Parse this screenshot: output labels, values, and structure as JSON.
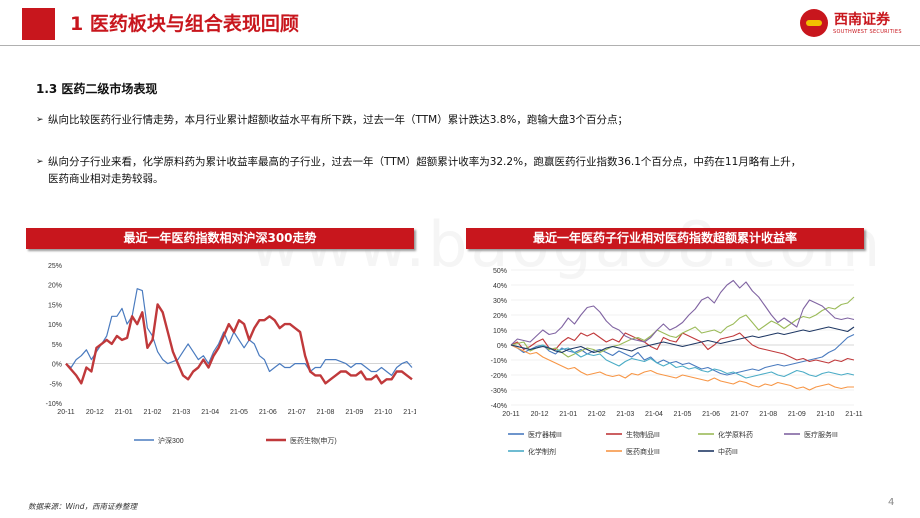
{
  "header": {
    "title": "1 医药板块与组合表现回顾"
  },
  "logo": {
    "name_cn": "西南证券",
    "name_en": "SOUTHWEST SECURITIES"
  },
  "section": {
    "title": "1.3 医药二级市场表现"
  },
  "bullets": [
    {
      "mark": "➢",
      "lines": [
        "纵向比较医药行业行情走势，本月行业累计超额收益水平有所下跌，过去一年（TTM）累计跌达3.8%，跑输大盘3个百分点；"
      ]
    },
    {
      "mark": "➢",
      "lines": [
        "纵向分子行业来看，化学原料药为累计收益率最高的子行业，过去一年（TTM）超额累计收率为32.2%，跑赢医药行业指数36.1个百分点，中药在11月略有上升，",
        "医药商业相对走势较弱。"
      ]
    }
  ],
  "watermark": "www.baogao8.com",
  "source": "数据来源：Wind，西南证券整理",
  "page_number": "4",
  "chart_data": [
    {
      "type": "line",
      "header": "最近一年医药指数相对沪深300走势",
      "title": "",
      "ylim": [
        -10,
        25
      ],
      "yticks": [
        "25%",
        "20%",
        "15%",
        "10%",
        "5%",
        "0%",
        "-5%",
        "-10%"
      ],
      "xticks": [
        "20-11",
        "20-12",
        "21-01",
        "21-02",
        "21-03",
        "21-04",
        "21-05",
        "21-06",
        "21-07",
        "21-08",
        "21-09",
        "21-10",
        "21-11"
      ],
      "legend_position": "bottom",
      "series": [
        {
          "name": "沪深300",
          "color": "#4a7bbf",
          "width": 1.2,
          "values": [
            0,
            -1,
            1,
            2,
            3.5,
            1,
            3,
            5,
            7,
            12,
            12,
            14,
            10,
            12,
            19,
            18.5,
            9,
            7,
            3,
            1,
            0,
            0.5,
            1,
            3,
            5,
            3,
            1,
            2,
            0,
            3,
            5,
            8,
            5,
            8,
            6,
            4,
            6,
            5,
            2,
            1,
            -2,
            -1,
            0,
            -1,
            -1,
            0,
            0,
            0,
            -2,
            -1,
            -1,
            1,
            1,
            1,
            0.5,
            0,
            -1,
            0,
            0,
            -1,
            -2,
            -2,
            -1,
            -2,
            -3,
            -1,
            0,
            0.5,
            -1
          ]
        },
        {
          "name": "医药生物(申万)",
          "color": "#c0393b",
          "width": 2.4,
          "values": [
            0,
            -1.5,
            -3,
            -5,
            -1,
            -2,
            4,
            5,
            6,
            5,
            7,
            6,
            6.5,
            12,
            10,
            13,
            4,
            6,
            15,
            13,
            8,
            3,
            0,
            -3,
            -4,
            -2,
            -1,
            1,
            -1,
            2,
            4,
            7,
            10,
            8,
            11,
            10,
            6,
            9,
            11,
            11,
            12,
            11,
            9,
            10,
            10,
            9,
            8,
            2,
            -2,
            -3,
            -3,
            -5,
            -4,
            -3,
            -2,
            -2,
            -3,
            -3,
            -2,
            -4,
            -4,
            -3,
            -5,
            -4,
            -4,
            -2,
            -2,
            -3,
            -4
          ]
        }
      ]
    },
    {
      "type": "line",
      "header": "最近一年医药子行业相对医药指数超额累计收益率",
      "title": "",
      "ylim": [
        -40,
        50
      ],
      "yticks": [
        "50%",
        "40%",
        "30%",
        "20%",
        "10%",
        "0%",
        "-10%",
        "-20%",
        "-30%",
        "-40%"
      ],
      "xticks": [
        "20-11",
        "20-12",
        "21-01",
        "21-02",
        "21-03",
        "21-04",
        "21-05",
        "21-06",
        "21-07",
        "21-08",
        "21-09",
        "21-10",
        "21-11"
      ],
      "legend_position": "bottom",
      "series": [
        {
          "name": "医疗器械III",
          "color": "#4a7bbf",
          "values": [
            0,
            -2,
            -5,
            -3,
            -1,
            0,
            -4,
            -6,
            -2,
            -4,
            -5,
            -3,
            -6,
            -4,
            -3,
            -5,
            -7,
            -4,
            -6,
            -8,
            -5,
            -10,
            -8,
            -12,
            -10,
            -12,
            -11,
            -13,
            -12,
            -14,
            -16,
            -15,
            -17,
            -19,
            -20,
            -19,
            -18,
            -17,
            -16,
            -17,
            -15,
            -14,
            -13,
            -14,
            -13,
            -12,
            -11,
            -10,
            -9,
            -8,
            -5,
            -3,
            1,
            5,
            7
          ]
        },
        {
          "name": "生物制品III",
          "color": "#c0393b",
          "values": [
            0,
            2,
            -3,
            -1,
            2,
            4,
            -2,
            -3,
            2,
            5,
            3,
            8,
            6,
            8,
            5,
            2,
            4,
            2,
            8,
            6,
            4,
            2,
            -1,
            -3,
            5,
            3,
            2,
            8,
            6,
            4,
            2,
            -3,
            0,
            4,
            5,
            6,
            8,
            4,
            0,
            -2,
            -3,
            -4,
            -5,
            -6,
            -8,
            -10,
            -9,
            -11,
            -10,
            -11,
            -12,
            -10,
            -11,
            -9,
            -10
          ]
        },
        {
          "name": "化学原料药",
          "color": "#9bbb59",
          "values": [
            0,
            1,
            2,
            -4,
            -2,
            0,
            -3,
            -2,
            -5,
            -8,
            -6,
            -4,
            -2,
            -3,
            -5,
            -3,
            -1,
            0,
            2,
            4,
            5,
            3,
            6,
            10,
            8,
            6,
            5,
            8,
            10,
            12,
            8,
            9,
            10,
            8,
            12,
            14,
            18,
            20,
            15,
            10,
            13,
            16,
            14,
            11,
            14,
            17,
            19,
            18,
            20,
            23,
            25,
            24,
            27,
            28,
            32
          ]
        },
        {
          "name": "医疗服务III",
          "color": "#8064a2",
          "values": [
            0,
            4,
            3,
            2,
            6,
            10,
            7,
            8,
            12,
            18,
            14,
            20,
            25,
            26,
            22,
            16,
            12,
            10,
            6,
            4,
            3,
            2,
            5,
            10,
            14,
            10,
            12,
            15,
            20,
            24,
            30,
            32,
            28,
            35,
            40,
            43,
            38,
            42,
            36,
            32,
            26,
            20,
            15,
            18,
            15,
            12,
            24,
            30,
            28,
            26,
            22,
            18,
            17,
            18,
            17
          ]
        },
        {
          "name": "化学制剂",
          "color": "#4bacc6",
          "values": [
            0,
            -1,
            -2,
            -3,
            -2,
            0,
            -2,
            -4,
            -3,
            -2,
            -5,
            -8,
            -6,
            -7,
            -6,
            -10,
            -12,
            -14,
            -11,
            -9,
            -10,
            -11,
            -9,
            -12,
            -14,
            -12,
            -15,
            -14,
            -16,
            -15,
            -17,
            -18,
            -16,
            -17,
            -19,
            -18,
            -20,
            -22,
            -21,
            -20,
            -19,
            -18,
            -20,
            -21,
            -19,
            -17,
            -18,
            -20,
            -21,
            -19,
            -18,
            -19,
            -20,
            -19,
            -20
          ]
        },
        {
          "name": "医药商业III",
          "color": "#f79646",
          "values": [
            0,
            -2,
            -4,
            -6,
            -5,
            -8,
            -10,
            -12,
            -14,
            -16,
            -15,
            -18,
            -20,
            -19,
            -18,
            -20,
            -21,
            -20,
            -22,
            -19,
            -20,
            -18,
            -17,
            -19,
            -20,
            -21,
            -22,
            -20,
            -21,
            -22,
            -23,
            -24,
            -22,
            -24,
            -25,
            -26,
            -24,
            -25,
            -27,
            -28,
            -26,
            -27,
            -25,
            -26,
            -27,
            -29,
            -28,
            -30,
            -28,
            -27,
            -26,
            -28,
            -29,
            -28,
            -28
          ]
        },
        {
          "name": "中药III",
          "color": "#1f3864",
          "values": [
            0,
            -1,
            -2,
            -3,
            -2,
            -1,
            -2,
            -4,
            -5,
            -3,
            -2,
            -1,
            -3,
            -5,
            -4,
            -2,
            -1,
            -2,
            -3,
            -4,
            -2,
            -1,
            0,
            1,
            2,
            1,
            0,
            -1,
            0,
            1,
            2,
            3,
            2,
            1,
            2,
            3,
            4,
            5,
            6,
            5,
            6,
            7,
            8,
            7,
            8,
            9,
            10,
            9,
            10,
            11,
            12,
            11,
            10,
            9,
            12
          ]
        }
      ]
    }
  ]
}
